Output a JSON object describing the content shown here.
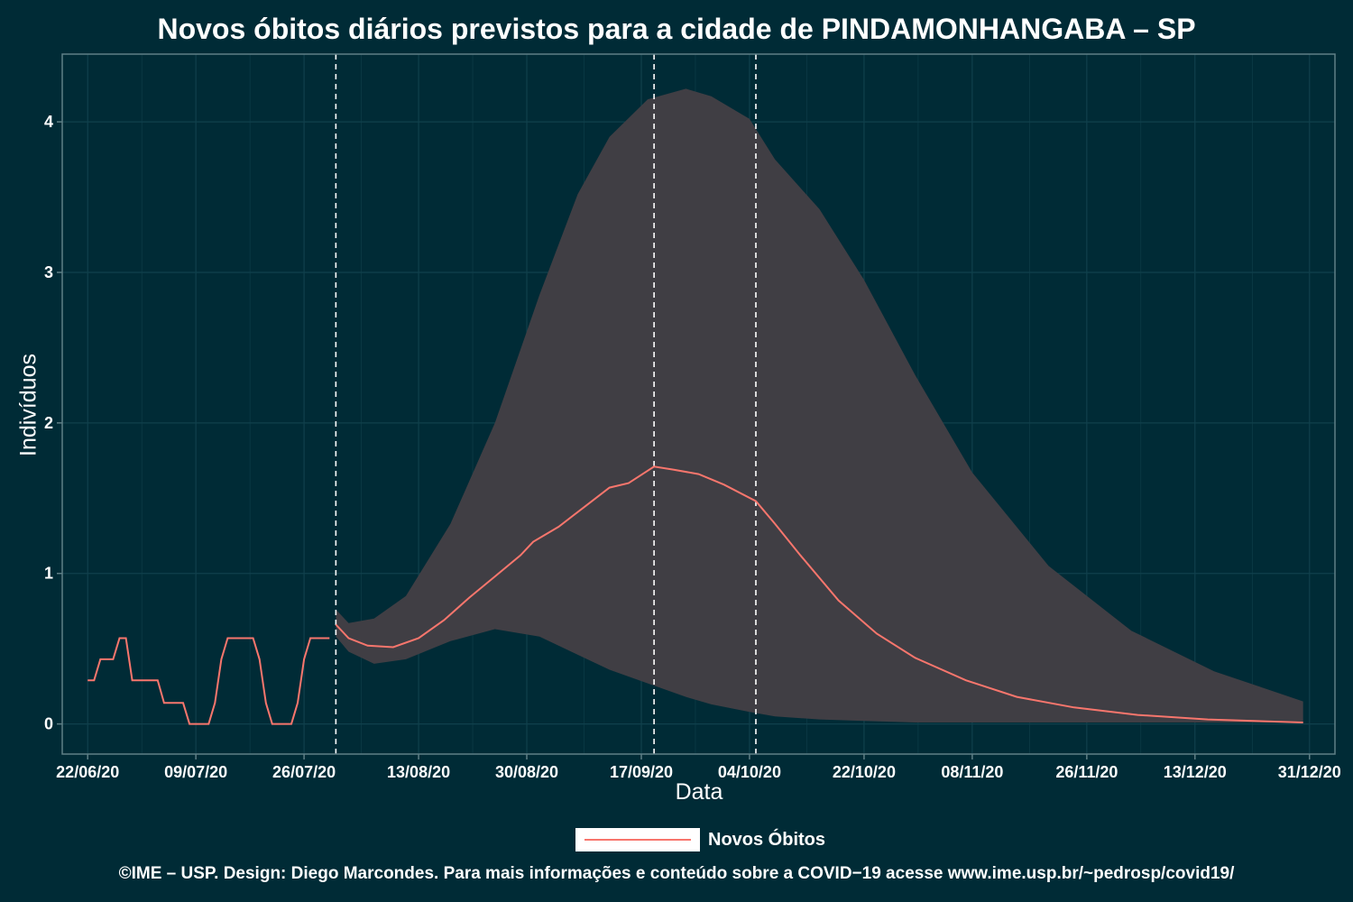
{
  "title": "Novos óbitos diários previstos para a cidade de PINDAMONHANGABA – SP",
  "caption": "©IME – USP. Design: Diego Marcondes. Para mais informações e conteúdo sobre a COVID−19 acesse www.ime.usp.br/~pedrosp/covid19/",
  "colors": {
    "background": "#002b36",
    "line": "#f8766d",
    "band": "#403e44",
    "grid": "#10404c",
    "axis": "#5f7f86",
    "vline": "#ffffff"
  },
  "chart_data": {
    "type": "line",
    "title": "Novos óbitos diários previstos para a cidade de PINDAMONHANGABA – SP",
    "xlabel": "Data",
    "ylabel": "Indivíduos",
    "x_type": "date",
    "xlim": [
      "2020-06-18",
      "2021-01-04"
    ],
    "ylim": [
      -0.2,
      4.45
    ],
    "x_ticks": [
      "2020-06-22",
      "2020-07-09",
      "2020-07-26",
      "2020-08-13",
      "2020-08-30",
      "2020-09-17",
      "2020-10-04",
      "2020-10-22",
      "2020-11-08",
      "2020-11-26",
      "2020-12-13",
      "2020-12-31"
    ],
    "x_tick_labels": [
      "22/06/20",
      "09/07/20",
      "26/07/20",
      "13/08/20",
      "30/08/20",
      "17/09/20",
      "04/10/20",
      "22/10/20",
      "08/11/20",
      "26/11/20",
      "13/12/20",
      "31/12/20"
    ],
    "y_ticks": [
      0,
      1,
      2,
      3,
      4
    ],
    "y_tick_labels": [
      "0",
      "1",
      "2",
      "3",
      "4"
    ],
    "grid": true,
    "legend_position": "bottom",
    "vertical_lines": [
      "2020-07-31",
      "2020-09-19",
      "2020-10-05"
    ],
    "series": [
      {
        "name": "Novos Óbitos",
        "x": [
          "2020-06-22",
          "2020-06-23",
          "2020-06-24",
          "2020-06-25",
          "2020-06-26",
          "2020-06-27",
          "2020-06-28",
          "2020-06-29",
          "2020-06-30",
          "2020-07-01",
          "2020-07-02",
          "2020-07-03",
          "2020-07-04",
          "2020-07-05",
          "2020-07-06",
          "2020-07-07",
          "2020-07-08",
          "2020-07-09",
          "2020-07-10",
          "2020-07-11",
          "2020-07-12",
          "2020-07-13",
          "2020-07-14",
          "2020-07-15",
          "2020-07-16",
          "2020-07-17",
          "2020-07-18",
          "2020-07-19",
          "2020-07-20",
          "2020-07-21",
          "2020-07-22",
          "2020-07-23",
          "2020-07-24",
          "2020-07-25",
          "2020-07-26",
          "2020-07-27",
          "2020-07-28",
          "2020-07-29",
          "2020-07-30"
        ],
        "y": [
          0.29,
          0.29,
          0.43,
          0.43,
          0.43,
          0.57,
          0.57,
          0.29,
          0.29,
          0.29,
          0.29,
          0.29,
          0.14,
          0.14,
          0.14,
          0.14,
          0,
          0,
          0,
          0,
          0.14,
          0.43,
          0.57,
          0.57,
          0.57,
          0.57,
          0.57,
          0.43,
          0.14,
          0,
          0,
          0,
          0,
          0.14,
          0.43,
          0.57,
          0.57,
          0.57,
          0.57
        ]
      },
      {
        "name": "Novos Óbitos",
        "x": [
          "2020-07-31",
          "2020-08-02",
          "2020-08-05",
          "2020-08-09",
          "2020-08-13",
          "2020-08-17",
          "2020-08-21",
          "2020-08-25",
          "2020-08-29",
          "2020-08-31",
          "2020-09-04",
          "2020-09-08",
          "2020-09-12",
          "2020-09-15",
          "2020-09-19",
          "2020-09-22",
          "2020-09-26",
          "2020-09-30",
          "2020-10-05",
          "2020-10-08",
          "2020-10-12",
          "2020-10-18",
          "2020-10-24",
          "2020-10-30",
          "2020-11-07",
          "2020-11-15",
          "2020-11-24",
          "2020-12-04",
          "2020-12-15",
          "2020-12-30"
        ],
        "y": [
          0.66,
          0.57,
          0.52,
          0.51,
          0.57,
          0.69,
          0.84,
          0.98,
          1.12,
          1.21,
          1.31,
          1.44,
          1.57,
          1.6,
          1.71,
          1.69,
          1.66,
          1.59,
          1.48,
          1.33,
          1.12,
          0.82,
          0.6,
          0.44,
          0.29,
          0.18,
          0.11,
          0.06,
          0.03,
          0.01
        ]
      }
    ],
    "band": {
      "x": [
        "2020-07-31",
        "2020-08-02",
        "2020-08-06",
        "2020-08-11",
        "2020-08-18",
        "2020-08-25",
        "2020-09-01",
        "2020-09-07",
        "2020-09-12",
        "2020-09-18",
        "2020-09-24",
        "2020-09-28",
        "2020-10-04",
        "2020-10-08",
        "2020-10-15",
        "2020-10-22",
        "2020-10-30",
        "2020-11-08",
        "2020-11-20",
        "2020-12-03",
        "2020-12-16",
        "2020-12-30"
      ],
      "lower": [
        0.58,
        0.48,
        0.4,
        0.43,
        0.55,
        0.63,
        0.58,
        0.46,
        0.36,
        0.27,
        0.18,
        0.13,
        0.08,
        0.05,
        0.03,
        0.02,
        0.01,
        0.01,
        0.01,
        0.01,
        0.01,
        0.01
      ],
      "upper": [
        0.76,
        0.67,
        0.7,
        0.85,
        1.33,
        2.0,
        2.85,
        3.52,
        3.9,
        4.15,
        4.22,
        4.17,
        4.02,
        3.75,
        3.42,
        2.95,
        2.32,
        1.67,
        1.05,
        0.62,
        0.35,
        0.15
      ]
    }
  }
}
